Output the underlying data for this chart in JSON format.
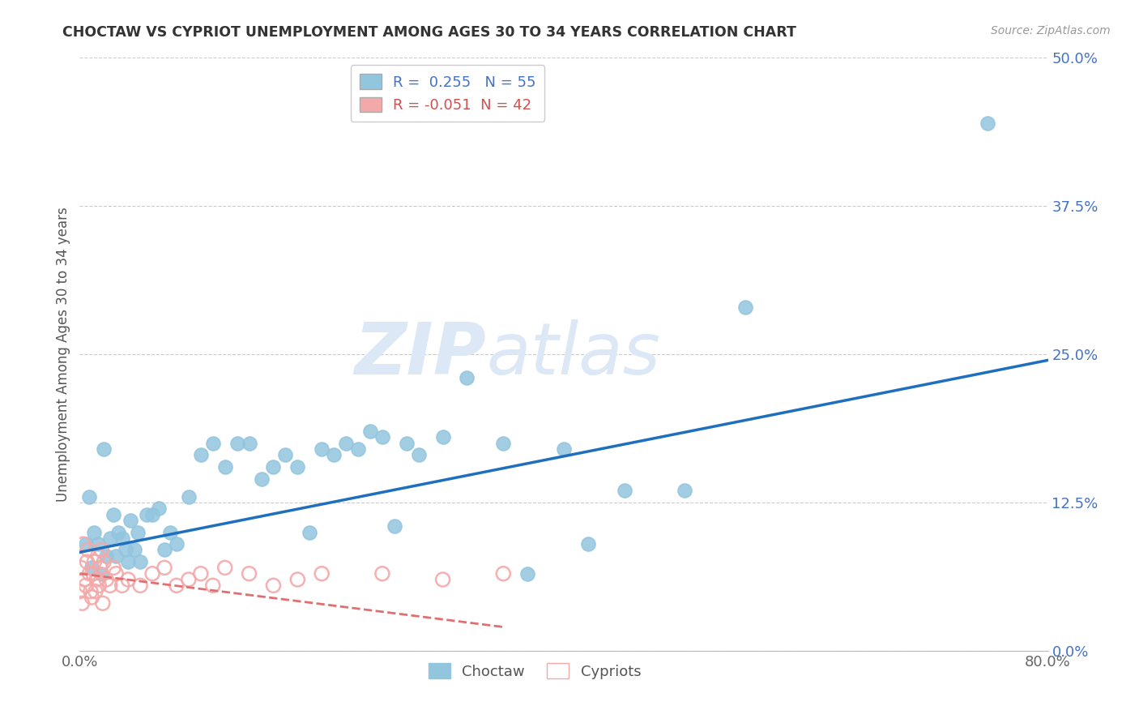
{
  "title": "CHOCTAW VS CYPRIOT UNEMPLOYMENT AMONG AGES 30 TO 34 YEARS CORRELATION CHART",
  "source": "Source: ZipAtlas.com",
  "ylabel": "Unemployment Among Ages 30 to 34 years",
  "xlabel": "",
  "xlim": [
    0.0,
    0.8
  ],
  "ylim": [
    0.0,
    0.5
  ],
  "yticks": [
    0.0,
    0.125,
    0.25,
    0.375,
    0.5
  ],
  "ytick_labels": [
    "0.0%",
    "12.5%",
    "25.0%",
    "37.5%",
    "50.0%"
  ],
  "xticks": [
    0.0,
    0.2,
    0.4,
    0.6,
    0.8
  ],
  "xtick_labels": [
    "0.0%",
    "",
    "",
    "",
    "80.0%"
  ],
  "choctaw_R": 0.255,
  "choctaw_N": 55,
  "cypriot_R": -0.051,
  "cypriot_N": 42,
  "choctaw_color": "#92c5de",
  "cypriot_color": "#f4a9a9",
  "choctaw_line_color": "#1f6fbf",
  "cypriot_line_color": "#e07070",
  "watermark_color": "#dce8f5",
  "background_color": "#ffffff",
  "choctaw_x": [
    0.005,
    0.008,
    0.01,
    0.012,
    0.015,
    0.018,
    0.02,
    0.022,
    0.025,
    0.028,
    0.03,
    0.032,
    0.035,
    0.038,
    0.04,
    0.042,
    0.045,
    0.048,
    0.05,
    0.055,
    0.06,
    0.065,
    0.07,
    0.075,
    0.08,
    0.09,
    0.1,
    0.11,
    0.12,
    0.13,
    0.14,
    0.15,
    0.16,
    0.17,
    0.18,
    0.19,
    0.2,
    0.21,
    0.22,
    0.23,
    0.24,
    0.25,
    0.26,
    0.27,
    0.28,
    0.3,
    0.32,
    0.35,
    0.37,
    0.4,
    0.42,
    0.45,
    0.5,
    0.55,
    0.75
  ],
  "choctaw_y": [
    0.09,
    0.13,
    0.07,
    0.1,
    0.09,
    0.065,
    0.17,
    0.08,
    0.095,
    0.115,
    0.08,
    0.1,
    0.095,
    0.085,
    0.075,
    0.11,
    0.085,
    0.1,
    0.075,
    0.115,
    0.115,
    0.12,
    0.085,
    0.1,
    0.09,
    0.13,
    0.165,
    0.175,
    0.155,
    0.175,
    0.175,
    0.145,
    0.155,
    0.165,
    0.155,
    0.1,
    0.17,
    0.165,
    0.175,
    0.17,
    0.185,
    0.18,
    0.105,
    0.175,
    0.165,
    0.18,
    0.23,
    0.175,
    0.065,
    0.17,
    0.09,
    0.135,
    0.135,
    0.29,
    0.445
  ],
  "cypriot_x": [
    0.0,
    0.001,
    0.002,
    0.003,
    0.004,
    0.005,
    0.006,
    0.007,
    0.008,
    0.009,
    0.01,
    0.011,
    0.012,
    0.013,
    0.014,
    0.015,
    0.016,
    0.017,
    0.018,
    0.019,
    0.02,
    0.022,
    0.025,
    0.028,
    0.03,
    0.035,
    0.04,
    0.05,
    0.06,
    0.07,
    0.08,
    0.09,
    0.1,
    0.11,
    0.12,
    0.14,
    0.16,
    0.18,
    0.2,
    0.25,
    0.3,
    0.35
  ],
  "cypriot_y": [
    0.05,
    0.07,
    0.04,
    0.09,
    0.06,
    0.055,
    0.075,
    0.085,
    0.065,
    0.05,
    0.045,
    0.065,
    0.075,
    0.05,
    0.06,
    0.08,
    0.055,
    0.07,
    0.085,
    0.04,
    0.075,
    0.06,
    0.055,
    0.07,
    0.065,
    0.055,
    0.06,
    0.055,
    0.065,
    0.07,
    0.055,
    0.06,
    0.065,
    0.055,
    0.07,
    0.065,
    0.055,
    0.06,
    0.065,
    0.065,
    0.06,
    0.065
  ],
  "choctaw_line_x": [
    0.0,
    0.8
  ],
  "choctaw_line_y": [
    0.083,
    0.245
  ],
  "cypriot_line_x": [
    0.0,
    0.35
  ],
  "cypriot_line_y": [
    0.065,
    0.02
  ]
}
